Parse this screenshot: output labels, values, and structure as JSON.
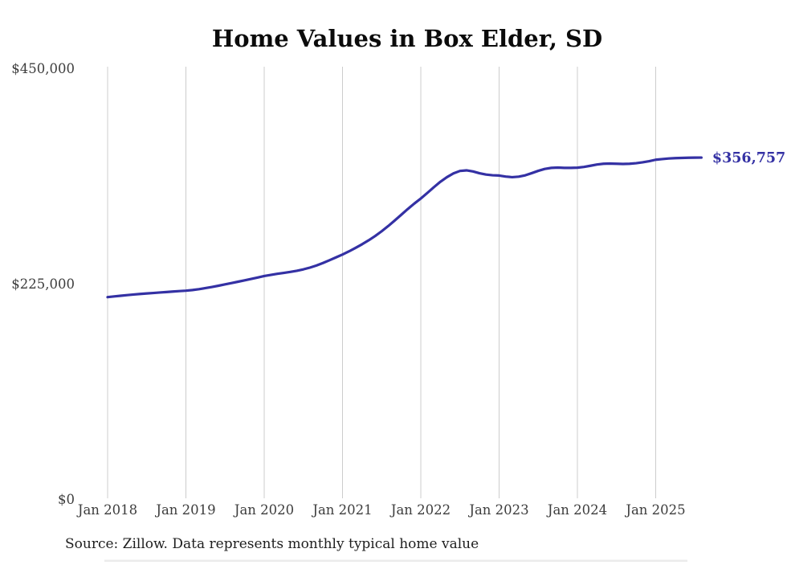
{
  "page": {
    "background_color": "#ffffff"
  },
  "chart": {
    "title": "Home Values in Box Elder, SD",
    "final_value_label": "$356,757",
    "source_note": "Source: Zillow. Data represents monthly typical home value"
  },
  "colors": {
    "line": "#3431a4",
    "grid": "#cccccc",
    "axis_text": "#3d3d3d",
    "title_text": "#0b0b0b",
    "annotation_text": "#3431a4",
    "source_text": "#1e1e1e",
    "background": "#ffffff"
  },
  "chart_data": {
    "type": "line",
    "title": "Home Values in Box Elder, SD",
    "xlabel": "",
    "ylabel": "",
    "unit": "USD",
    "grid": "vertical-only",
    "legend": "none",
    "x_frequency": "monthly",
    "x_start": "2018-01",
    "x_end": "2025-08",
    "x_tick_labels": [
      "Jan 2018",
      "Jan 2019",
      "Jan 2020",
      "Jan 2021",
      "Jan 2022",
      "Jan 2023",
      "Jan 2024",
      "Jan 2025"
    ],
    "x_tick_month_indices": [
      0,
      12,
      24,
      36,
      48,
      60,
      72,
      84
    ],
    "ylim": [
      0,
      450000
    ],
    "y_ticks": [
      0,
      225000,
      450000
    ],
    "y_tick_labels": [
      "$0",
      "$225,000",
      "$450,000"
    ],
    "final_value": 356757,
    "final_value_label": "$356,757",
    "source_note": "Source: Zillow. Data represents monthly typical home value",
    "series": [
      {
        "name": "Typical home value",
        "values": [
          211000,
          211700,
          212400,
          213100,
          213700,
          214300,
          214800,
          215300,
          215800,
          216300,
          216800,
          217300,
          217700,
          218400,
          219300,
          220400,
          221600,
          222900,
          224300,
          225700,
          227100,
          228500,
          230000,
          231500,
          233000,
          234200,
          235300,
          236300,
          237300,
          238500,
          240000,
          241800,
          244000,
          246600,
          249500,
          252500,
          255500,
          258800,
          262400,
          266200,
          270300,
          274800,
          279800,
          285200,
          291000,
          297000,
          303000,
          308700,
          314000,
          319800,
          325800,
          331500,
          336300,
          340200,
          342800,
          343400,
          342300,
          340400,
          339000,
          338300,
          338000,
          336900,
          336300,
          336800,
          338200,
          340500,
          342900,
          344900,
          346000,
          346300,
          346000,
          346000,
          346200,
          347000,
          348200,
          349500,
          350300,
          350500,
          350300,
          350100,
          350300,
          350900,
          351800,
          353000,
          354500,
          355200,
          355800,
          356200,
          356400,
          356600,
          356700,
          356757
        ]
      }
    ]
  }
}
